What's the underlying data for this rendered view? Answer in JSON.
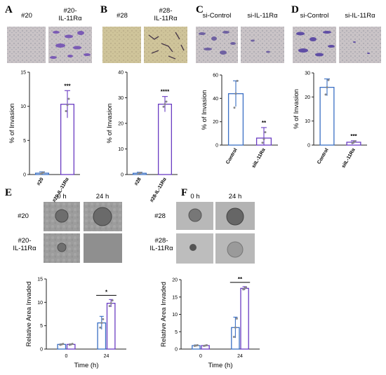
{
  "figure": {
    "panels": {
      "A": {
        "letter": "A",
        "image_labels": [
          "#20",
          "#20-\nIL-11Rα"
        ]
      },
      "B": {
        "letter": "B",
        "image_labels": [
          "#28",
          "#28-\nIL-11Rα"
        ]
      },
      "C": {
        "letter": "C",
        "image_labels": [
          "si-Control",
          "si-IL-11Rα"
        ]
      },
      "D": {
        "letter": "D",
        "image_labels": [
          "si-Control",
          "si-IL-11Rα"
        ]
      },
      "E": {
        "letter": "E",
        "time_labels": [
          "0 h",
          "24 h"
        ],
        "row_labels": [
          "#20",
          "#20-\nIL-11Rα"
        ]
      },
      "F": {
        "letter": "F",
        "time_labels": [
          "0 h",
          "24 h"
        ],
        "row_labels": [
          "#28",
          "#28-\nIL-11Rα"
        ]
      }
    }
  },
  "colors": {
    "blue": "#3a6fc4",
    "purple": "#6a3cc2",
    "axis": "#222222"
  },
  "chart_data": [
    {
      "id": "A",
      "type": "bar",
      "ylabel": "% of Invasion",
      "ylim": [
        0,
        15
      ],
      "yticks": [
        0,
        5,
        10,
        15
      ],
      "categories": [
        "#20",
        "#20-IL-11Rα"
      ],
      "values": [
        0.2,
        10.3
      ],
      "errors": [
        0.2,
        2.0
      ],
      "points": [
        [
          0.1,
          0.2,
          0.3
        ],
        [
          9.3,
          10.2,
          11.1
        ]
      ],
      "significance": "***"
    },
    {
      "id": "B",
      "type": "bar",
      "ylabel": "% of Invasion",
      "ylim": [
        0,
        40
      ],
      "yticks": [
        0,
        10,
        20,
        30,
        40
      ],
      "categories": [
        "#28",
        "#28-IL-11Rα"
      ],
      "values": [
        0.5,
        27.5
      ],
      "errors": [
        0.4,
        3.0
      ],
      "points": [
        [
          0.3,
          0.5,
          0.7
        ],
        [
          26.5,
          27.5,
          28.5
        ]
      ],
      "significance": "****"
    },
    {
      "id": "C",
      "type": "bar",
      "ylabel": "% of Invasion",
      "ylim": [
        0,
        60
      ],
      "yticks": [
        0,
        20,
        40,
        60
      ],
      "categories": [
        "Control",
        "siIL-11Rα"
      ],
      "values": [
        44,
        6
      ],
      "errors": [
        11,
        9
      ],
      "points": [
        [
          32,
          44,
          55
        ],
        [
          2,
          5,
          11
        ]
      ],
      "significance": "**"
    },
    {
      "id": "D",
      "type": "bar",
      "ylabel": "% of Invasion",
      "ylim": [
        0,
        30
      ],
      "yticks": [
        0,
        10,
        20,
        30
      ],
      "categories": [
        "Control",
        "siIL-11Rα"
      ],
      "values": [
        24,
        1.2
      ],
      "errors": [
        3.5,
        0.6
      ],
      "points": [
        [
          21,
          24,
          27
        ],
        [
          0.8,
          1.2,
          1.6
        ]
      ],
      "significance": "***"
    },
    {
      "id": "E",
      "type": "bar",
      "ylabel": "Relative Area Invaded",
      "xlabel": "Time (h)",
      "ylim": [
        0,
        15
      ],
      "yticks": [
        0,
        5,
        10,
        15
      ],
      "categories": [
        "0",
        "24"
      ],
      "series": [
        {
          "values": [
            1.0,
            5.6
          ],
          "errors": [
            0.1,
            1.4
          ],
          "points": [
            [
              0.9,
              1.0,
              1.1
            ],
            [
              4.6,
              5.6,
              6.4
            ]
          ]
        },
        {
          "values": [
            1.0,
            9.8
          ],
          "errors": [
            0.1,
            0.8
          ],
          "points": [
            [
              0.9,
              1.0,
              1.1
            ],
            [
              9.2,
              9.8,
              10.4
            ]
          ]
        }
      ],
      "significance": "*"
    },
    {
      "id": "F",
      "type": "bar",
      "ylabel": "Relative Area Invaded",
      "xlabel": "Time (h)",
      "ylim": [
        0,
        20
      ],
      "yticks": [
        0,
        5,
        10,
        15,
        20
      ],
      "categories": [
        "0",
        "24"
      ],
      "series": [
        {
          "values": [
            1.0,
            6.2
          ],
          "errors": [
            0.2,
            3.0
          ],
          "points": [
            [
              0.9,
              1.0,
              1.1
            ],
            [
              3.5,
              6.2,
              8.8
            ]
          ]
        },
        {
          "values": [
            1.0,
            17.5
          ],
          "errors": [
            0.1,
            0.5
          ],
          "points": [
            [
              0.9,
              1.0,
              1.1
            ],
            [
              17.2,
              17.5,
              17.8
            ]
          ]
        }
      ],
      "significance": "**"
    }
  ]
}
